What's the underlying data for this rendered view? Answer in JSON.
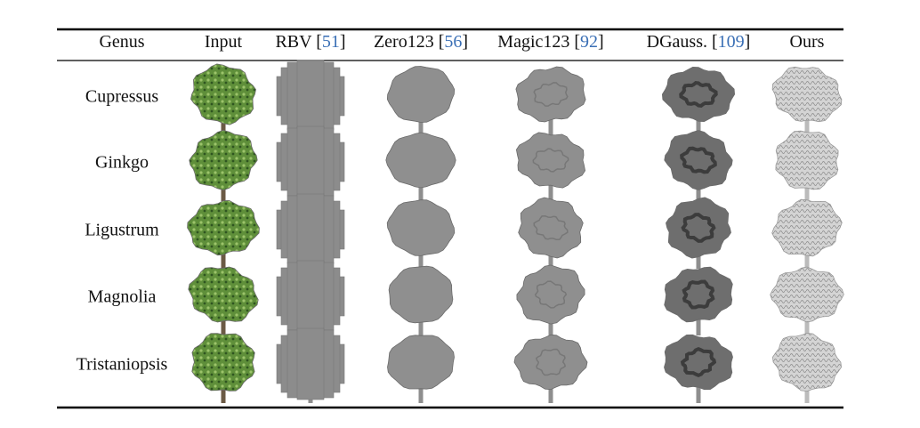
{
  "table": {
    "columns": [
      [
        "Genus"
      ],
      [
        "Input"
      ],
      [
        "RBV [",
        "51",
        "]"
      ],
      [
        "Zero123 [",
        "56",
        "]"
      ],
      [
        "Magic123 [",
        "92",
        "]"
      ],
      [
        "DGauss. [",
        "109",
        "]"
      ],
      [
        "Ours"
      ]
    ],
    "rows": [
      "Cupressus",
      "Ginkgo",
      "Ligustrum",
      "Magnolia",
      "Tristaniopsis"
    ]
  }
}
